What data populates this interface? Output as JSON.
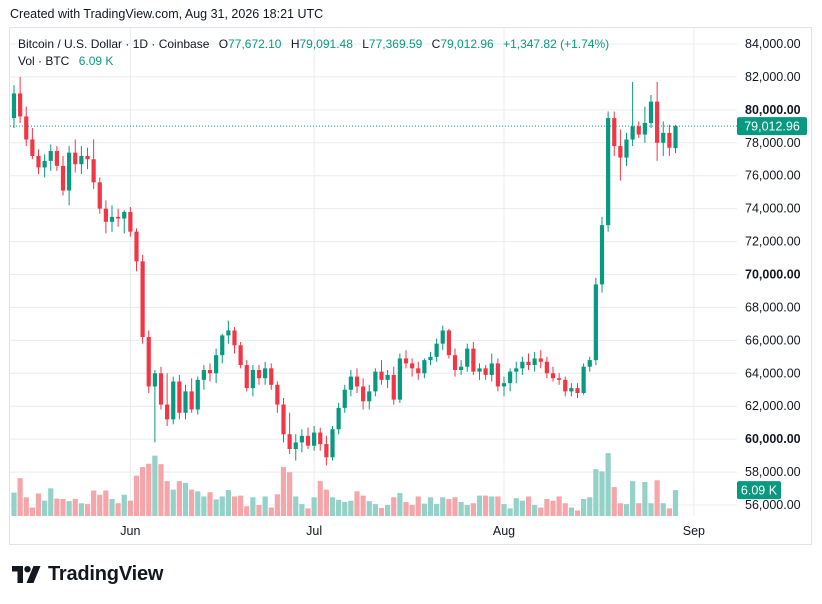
{
  "header": {
    "created_text": "Created with TradingView.com, Aug 31, 2026 18:21 UTC"
  },
  "legend": {
    "symbol": "Bitcoin / U.S. Dollar · 1D · Coinbase",
    "o_label": "O",
    "o_value": "77,672.10",
    "h_label": "H",
    "h_value": "79,091.48",
    "l_label": "L",
    "l_value": "77,369.59",
    "c_label": "C",
    "c_value": "79,012.96",
    "change": "+1,347.82 (+1.74%)",
    "vol_label": "Vol · BTC",
    "vol_value": "6.09 K"
  },
  "brand": {
    "name": "TradingView"
  },
  "colors": {
    "up": "#089981",
    "down": "#f23645",
    "vol_up": "#94d1c8",
    "vol_down": "#f5a6ab",
    "grid": "#e9ecf2",
    "text": "#131722"
  },
  "chart_data": {
    "type": "candlestick",
    "title": "Bitcoin / U.S. Dollar · 1D · Coinbase",
    "ylim": [
      55000,
      85000
    ],
    "y_ticks": [
      56000,
      58000,
      60000,
      62000,
      64000,
      66000,
      68000,
      70000,
      72000,
      74000,
      76000,
      78000,
      80000,
      82000,
      84000
    ],
    "y_tick_labels": [
      "56,000.00",
      "58,000.00",
      "60,000.00",
      "62,000.00",
      "64,000.00",
      "66,000.00",
      "68,000.00",
      "70,000.00",
      "72,000.00",
      "74,000.00",
      "76,000.00",
      "78,000.00",
      "80,000.00",
      "82,000.00",
      "84,000.00"
    ],
    "y_tick_bold": [
      60000,
      70000,
      80000
    ],
    "x_ticks": [
      {
        "label": "Jun",
        "index": 19
      },
      {
        "label": "Jul",
        "index": 49
      },
      {
        "label": "Aug",
        "index": 80
      },
      {
        "label": "Sep",
        "index": 111
      }
    ],
    "last_price": 79012.96,
    "last_price_label": "79,012.96",
    "last_volume_label": "6.09 K",
    "volume_ylim": [
      0,
      16
    ],
    "candles": [
      {
        "o": 79500,
        "h": 81500,
        "l": 78900,
        "c": 81000,
        "v": 5.5
      },
      {
        "o": 81000,
        "h": 82000,
        "l": 79200,
        "c": 79600,
        "v": 8.9
      },
      {
        "o": 79600,
        "h": 80200,
        "l": 77800,
        "c": 78200,
        "v": 4.4
      },
      {
        "o": 78200,
        "h": 78900,
        "l": 77000,
        "c": 77200,
        "v": 2.0
      },
      {
        "o": 77200,
        "h": 77600,
        "l": 76100,
        "c": 76500,
        "v": 5.3
      },
      {
        "o": 76500,
        "h": 77300,
        "l": 75900,
        "c": 76900,
        "v": 3.6
      },
      {
        "o": 76900,
        "h": 77900,
        "l": 76300,
        "c": 77500,
        "v": 6.5
      },
      {
        "o": 77500,
        "h": 77800,
        "l": 76300,
        "c": 76600,
        "v": 4.1
      },
      {
        "o": 76600,
        "h": 77200,
        "l": 74800,
        "c": 75100,
        "v": 4.0
      },
      {
        "o": 75100,
        "h": 77800,
        "l": 74200,
        "c": 77400,
        "v": 3.5
      },
      {
        "o": 77400,
        "h": 78200,
        "l": 76200,
        "c": 76700,
        "v": 4.0
      },
      {
        "o": 76700,
        "h": 77800,
        "l": 76100,
        "c": 77200,
        "v": 3.0
      },
      {
        "o": 77200,
        "h": 77700,
        "l": 76400,
        "c": 77000,
        "v": 2.8
      },
      {
        "o": 77000,
        "h": 78200,
        "l": 75200,
        "c": 75600,
        "v": 6.0
      },
      {
        "o": 75600,
        "h": 75900,
        "l": 73700,
        "c": 74000,
        "v": 5.0
      },
      {
        "o": 74000,
        "h": 74500,
        "l": 72500,
        "c": 73200,
        "v": 6.0
      },
      {
        "o": 73200,
        "h": 74200,
        "l": 72600,
        "c": 73500,
        "v": 4.0
      },
      {
        "o": 73500,
        "h": 74000,
        "l": 72900,
        "c": 73400,
        "v": 3.0
      },
      {
        "o": 73400,
        "h": 73900,
        "l": 72500,
        "c": 73800,
        "v": 5.0
      },
      {
        "o": 73800,
        "h": 74100,
        "l": 72300,
        "c": 72600,
        "v": 3.6
      },
      {
        "o": 72600,
        "h": 72800,
        "l": 70200,
        "c": 70800,
        "v": 9.5
      },
      {
        "o": 70800,
        "h": 71200,
        "l": 65800,
        "c": 66200,
        "v": 11.5
      },
      {
        "o": 66200,
        "h": 66600,
        "l": 62800,
        "c": 63200,
        "v": 12.3
      },
      {
        "o": 63200,
        "h": 64200,
        "l": 59800,
        "c": 64000,
        "v": 14.2
      },
      {
        "o": 64000,
        "h": 64400,
        "l": 61800,
        "c": 62100,
        "v": 12.2
      },
      {
        "o": 62100,
        "h": 64000,
        "l": 60800,
        "c": 61200,
        "v": 8.2
      },
      {
        "o": 61200,
        "h": 63800,
        "l": 60900,
        "c": 63500,
        "v": 6.2
      },
      {
        "o": 63500,
        "h": 63900,
        "l": 61200,
        "c": 61600,
        "v": 8.2
      },
      {
        "o": 61600,
        "h": 63300,
        "l": 61200,
        "c": 62900,
        "v": 7.8
      },
      {
        "o": 62900,
        "h": 63700,
        "l": 61600,
        "c": 61800,
        "v": 6.2
      },
      {
        "o": 61800,
        "h": 63800,
        "l": 61500,
        "c": 63600,
        "v": 5.8
      },
      {
        "o": 63600,
        "h": 64500,
        "l": 63000,
        "c": 64200,
        "v": 4.6
      },
      {
        "o": 64200,
        "h": 64600,
        "l": 63500,
        "c": 64000,
        "v": 5.6
      },
      {
        "o": 64000,
        "h": 65500,
        "l": 63400,
        "c": 65100,
        "v": 3.9
      },
      {
        "o": 65100,
        "h": 66400,
        "l": 64600,
        "c": 66300,
        "v": 4.6
      },
      {
        "o": 66300,
        "h": 67200,
        "l": 65800,
        "c": 66600,
        "v": 6.1
      },
      {
        "o": 66600,
        "h": 66800,
        "l": 65200,
        "c": 65700,
        "v": 4.6
      },
      {
        "o": 65700,
        "h": 65900,
        "l": 64300,
        "c": 64500,
        "v": 4.8
      },
      {
        "o": 64500,
        "h": 64800,
        "l": 62900,
        "c": 63100,
        "v": 2.3
      },
      {
        "o": 63100,
        "h": 64500,
        "l": 62600,
        "c": 64200,
        "v": 4.4
      },
      {
        "o": 64200,
        "h": 64500,
        "l": 63300,
        "c": 63700,
        "v": 2.6
      },
      {
        "o": 63700,
        "h": 64700,
        "l": 63300,
        "c": 64300,
        "v": 4.6
      },
      {
        "o": 64300,
        "h": 64600,
        "l": 63000,
        "c": 63300,
        "v": 2.0
      },
      {
        "o": 63300,
        "h": 63500,
        "l": 61600,
        "c": 62100,
        "v": 5.1
      },
      {
        "o": 62100,
        "h": 62500,
        "l": 59800,
        "c": 60300,
        "v": 11.5
      },
      {
        "o": 60300,
        "h": 61600,
        "l": 59100,
        "c": 59400,
        "v": 10.3
      },
      {
        "o": 59400,
        "h": 60300,
        "l": 58700,
        "c": 59800,
        "v": 4.6
      },
      {
        "o": 59800,
        "h": 60600,
        "l": 59200,
        "c": 60200,
        "v": 2.8
      },
      {
        "o": 60200,
        "h": 60700,
        "l": 59400,
        "c": 59600,
        "v": 1.8
      },
      {
        "o": 59600,
        "h": 60800,
        "l": 59300,
        "c": 60400,
        "v": 4.4
      },
      {
        "o": 60400,
        "h": 60700,
        "l": 59300,
        "c": 59700,
        "v": 8.2
      },
      {
        "o": 59700,
        "h": 60200,
        "l": 58400,
        "c": 58900,
        "v": 6.2
      },
      {
        "o": 58900,
        "h": 60800,
        "l": 58700,
        "c": 60600,
        "v": 4.4
      },
      {
        "o": 60600,
        "h": 62200,
        "l": 60300,
        "c": 61900,
        "v": 3.8
      },
      {
        "o": 61900,
        "h": 63300,
        "l": 61600,
        "c": 63000,
        "v": 3.3
      },
      {
        "o": 63000,
        "h": 64200,
        "l": 62600,
        "c": 63800,
        "v": 3.6
      },
      {
        "o": 63800,
        "h": 64300,
        "l": 62800,
        "c": 63200,
        "v": 5.8
      },
      {
        "o": 63200,
        "h": 63700,
        "l": 61800,
        "c": 62300,
        "v": 4.8
      },
      {
        "o": 62300,
        "h": 63300,
        "l": 61800,
        "c": 62900,
        "v": 3.5
      },
      {
        "o": 62900,
        "h": 64300,
        "l": 62600,
        "c": 64100,
        "v": 2.8
      },
      {
        "o": 64100,
        "h": 64800,
        "l": 63300,
        "c": 63600,
        "v": 1.9
      },
      {
        "o": 63600,
        "h": 64200,
        "l": 63100,
        "c": 63900,
        "v": 2.6
      },
      {
        "o": 63900,
        "h": 64400,
        "l": 62100,
        "c": 62400,
        "v": 4.4
      },
      {
        "o": 62400,
        "h": 65200,
        "l": 62200,
        "c": 64900,
        "v": 5.4
      },
      {
        "o": 64900,
        "h": 65400,
        "l": 64300,
        "c": 64600,
        "v": 3.3
      },
      {
        "o": 64600,
        "h": 64900,
        "l": 63800,
        "c": 64300,
        "v": 2.6
      },
      {
        "o": 64300,
        "h": 64700,
        "l": 63600,
        "c": 64000,
        "v": 4.6
      },
      {
        "o": 64000,
        "h": 64900,
        "l": 63700,
        "c": 64800,
        "v": 2.9
      },
      {
        "o": 64800,
        "h": 65300,
        "l": 64500,
        "c": 65000,
        "v": 4.4
      },
      {
        "o": 65000,
        "h": 66100,
        "l": 64700,
        "c": 65800,
        "v": 2.8
      },
      {
        "o": 65800,
        "h": 66900,
        "l": 65400,
        "c": 66600,
        "v": 4.4
      },
      {
        "o": 66600,
        "h": 66700,
        "l": 64900,
        "c": 65100,
        "v": 4.0
      },
      {
        "o": 65100,
        "h": 65500,
        "l": 63800,
        "c": 64200,
        "v": 4.4
      },
      {
        "o": 64200,
        "h": 64800,
        "l": 63900,
        "c": 64400,
        "v": 3.3
      },
      {
        "o": 64400,
        "h": 65800,
        "l": 64100,
        "c": 65500,
        "v": 2.6
      },
      {
        "o": 65500,
        "h": 65900,
        "l": 63900,
        "c": 64100,
        "v": 3.0
      },
      {
        "o": 64100,
        "h": 64600,
        "l": 63600,
        "c": 64300,
        "v": 4.8
      },
      {
        "o": 64300,
        "h": 64500,
        "l": 63600,
        "c": 63900,
        "v": 4.8
      },
      {
        "o": 63900,
        "h": 65200,
        "l": 63500,
        "c": 64600,
        "v": 4.6
      },
      {
        "o": 64600,
        "h": 64900,
        "l": 62900,
        "c": 63200,
        "v": 4.6
      },
      {
        "o": 63200,
        "h": 63800,
        "l": 62600,
        "c": 63400,
        "v": 2.8
      },
      {
        "o": 63400,
        "h": 64300,
        "l": 62900,
        "c": 64100,
        "v": 1.8
      },
      {
        "o": 64100,
        "h": 64700,
        "l": 63400,
        "c": 64300,
        "v": 4.2
      },
      {
        "o": 64300,
        "h": 65000,
        "l": 63900,
        "c": 64700,
        "v": 3.6
      },
      {
        "o": 64700,
        "h": 65200,
        "l": 64200,
        "c": 64500,
        "v": 4.6
      },
      {
        "o": 64500,
        "h": 65300,
        "l": 64100,
        "c": 64900,
        "v": 2.6
      },
      {
        "o": 64900,
        "h": 65400,
        "l": 64300,
        "c": 64700,
        "v": 2.0
      },
      {
        "o": 64700,
        "h": 65000,
        "l": 63700,
        "c": 64000,
        "v": 4.0
      },
      {
        "o": 64000,
        "h": 64400,
        "l": 63500,
        "c": 63700,
        "v": 3.6
      },
      {
        "o": 63700,
        "h": 64000,
        "l": 63300,
        "c": 63600,
        "v": 4.6
      },
      {
        "o": 63600,
        "h": 63800,
        "l": 62600,
        "c": 62900,
        "v": 3.0
      },
      {
        "o": 62900,
        "h": 63400,
        "l": 62600,
        "c": 63100,
        "v": 2.0
      },
      {
        "o": 63100,
        "h": 63400,
        "l": 62500,
        "c": 62800,
        "v": 1.3
      },
      {
        "o": 62800,
        "h": 64600,
        "l": 62700,
        "c": 64400,
        "v": 4.0
      },
      {
        "o": 64400,
        "h": 65000,
        "l": 64100,
        "c": 64800,
        "v": 4.4
      },
      {
        "o": 64800,
        "h": 69800,
        "l": 64500,
        "c": 69400,
        "v": 11.0
      },
      {
        "o": 69400,
        "h": 73500,
        "l": 68900,
        "c": 73000,
        "v": 10.5
      },
      {
        "o": 73000,
        "h": 79900,
        "l": 72600,
        "c": 79500,
        "v": 14.8
      },
      {
        "o": 79500,
        "h": 79900,
        "l": 77200,
        "c": 77800,
        "v": 6.8
      },
      {
        "o": 77800,
        "h": 78800,
        "l": 75700,
        "c": 77100,
        "v": 3.0
      },
      {
        "o": 77100,
        "h": 78600,
        "l": 76600,
        "c": 78200,
        "v": 2.8
      },
      {
        "o": 78200,
        "h": 81700,
        "l": 77800,
        "c": 79000,
        "v": 8.2
      },
      {
        "o": 79000,
        "h": 79300,
        "l": 78300,
        "c": 78500,
        "v": 3.0
      },
      {
        "o": 78500,
        "h": 80200,
        "l": 78000,
        "c": 79200,
        "v": 8.0
      },
      {
        "o": 79200,
        "h": 80900,
        "l": 78900,
        "c": 80500,
        "v": 3.0
      },
      {
        "o": 80500,
        "h": 81700,
        "l": 76900,
        "c": 78000,
        "v": 8.4
      },
      {
        "o": 78000,
        "h": 79300,
        "l": 77200,
        "c": 78600,
        "v": 3.0
      },
      {
        "o": 78600,
        "h": 79100,
        "l": 77200,
        "c": 77700,
        "v": 1.8
      },
      {
        "o": 77672.1,
        "h": 79091.48,
        "l": 77369.59,
        "c": 79012.96,
        "v": 6.09
      }
    ]
  }
}
